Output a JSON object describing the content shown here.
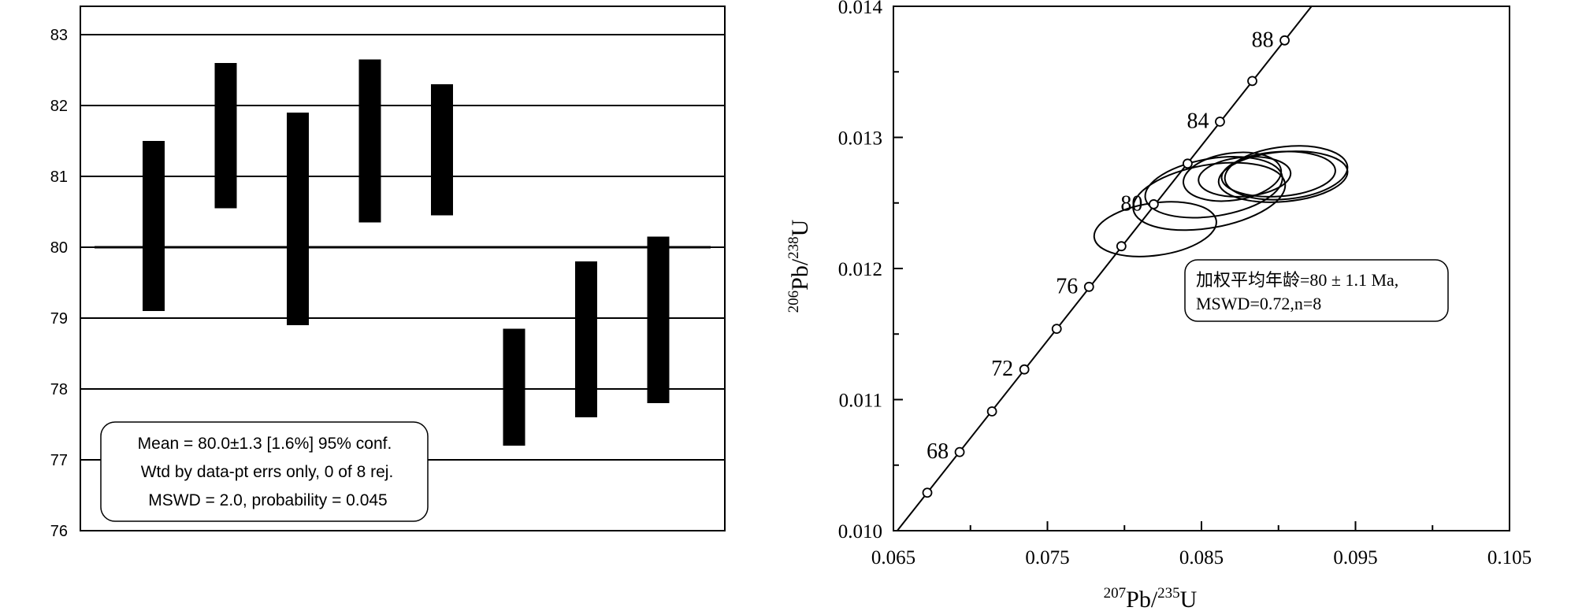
{
  "chart_data": [
    {
      "type": "bar",
      "subtype": "weighted-mean-error-bars",
      "title": "",
      "xlabel": "",
      "ylabel": "",
      "ylim": [
        76,
        83.4
      ],
      "yticks": [
        "76",
        "77",
        "78",
        "79",
        "80",
        "81",
        "82",
        "83"
      ],
      "grid": true,
      "mean_line": 80.0,
      "bars": [
        {
          "low": 79.1,
          "high": 81.5
        },
        {
          "low": 80.55,
          "high": 82.6
        },
        {
          "low": 78.9,
          "high": 81.9
        },
        {
          "low": 80.35,
          "high": 82.65
        },
        {
          "low": 80.45,
          "high": 82.3
        },
        {
          "low": 77.2,
          "high": 78.85
        },
        {
          "low": 77.6,
          "high": 79.8
        },
        {
          "low": 77.8,
          "high": 80.15
        }
      ],
      "annotation": [
        "Mean = 80.0±1.3  [1.6%]  95% conf.",
        "Wtd by data-pt errs only, 0 of 8 rej.",
        "MSWD = 2.0, probability = 0.045"
      ]
    },
    {
      "type": "scatter",
      "subtype": "concordia",
      "title": "",
      "xlabel_num": "207",
      "xlabel_main": "Pb/",
      "xlabel_den": "235",
      "xlabel_unit": "U",
      "ylabel_num": "206",
      "ylabel_main": "Pb/",
      "ylabel_den": "238",
      "ylabel_unit": "U",
      "xlim": [
        0.065,
        0.105
      ],
      "ylim": [
        0.01,
        0.014
      ],
      "xticks": [
        "0.065",
        "0.075",
        "0.085",
        "0.095",
        "0.105"
      ],
      "yticks": [
        "0.010",
        "0.011",
        "0.012",
        "0.013",
        "0.014"
      ],
      "concordia_points": [
        {
          "x": 0.0672,
          "y": 0.01029
        },
        {
          "x": 0.0693,
          "y": 0.0106
        },
        {
          "x": 0.0714,
          "y": 0.01091
        },
        {
          "x": 0.0735,
          "y": 0.01123
        },
        {
          "x": 0.0756,
          "y": 0.01154
        },
        {
          "x": 0.0777,
          "y": 0.01186
        },
        {
          "x": 0.0798,
          "y": 0.01217
        },
        {
          "x": 0.0819,
          "y": 0.01249
        },
        {
          "x": 0.0841,
          "y": 0.0128
        },
        {
          "x": 0.0862,
          "y": 0.01312
        },
        {
          "x": 0.0883,
          "y": 0.01343
        },
        {
          "x": 0.0904,
          "y": 0.01374
        }
      ],
      "age_labels": [
        {
          "label": "68",
          "x": 0.0693,
          "y": 0.0106
        },
        {
          "label": "72",
          "x": 0.0735,
          "y": 0.01123
        },
        {
          "label": "76",
          "x": 0.0777,
          "y": 0.01186
        },
        {
          "label": "80",
          "x": 0.0819,
          "y": 0.01249
        },
        {
          "label": "84",
          "x": 0.0862,
          "y": 0.01312
        },
        {
          "label": "88",
          "x": 0.0904,
          "y": 0.01374
        }
      ],
      "ellipses": [
        {
          "cx": 0.082,
          "cy": 0.0123,
          "rx": 0.004,
          "ry": 0.0002,
          "rot": -8
        },
        {
          "cx": 0.0855,
          "cy": 0.01255,
          "rx": 0.005,
          "ry": 0.00024,
          "rot": -10
        },
        {
          "cx": 0.0858,
          "cy": 0.01262,
          "rx": 0.0045,
          "ry": 0.00022,
          "rot": -9
        },
        {
          "cx": 0.0878,
          "cy": 0.0127,
          "rx": 0.003,
          "ry": 0.00015,
          "rot": -5
        },
        {
          "cx": 0.087,
          "cy": 0.0127,
          "rx": 0.0032,
          "ry": 0.00018,
          "rot": -8
        },
        {
          "cx": 0.0905,
          "cy": 0.01273,
          "rx": 0.004,
          "ry": 0.0002,
          "rot": -6
        },
        {
          "cx": 0.09,
          "cy": 0.01272,
          "rx": 0.0037,
          "ry": 0.00017,
          "rot": -4
        },
        {
          "cx": 0.0903,
          "cy": 0.0127,
          "rx": 0.0042,
          "ry": 0.00019,
          "rot": -5
        }
      ],
      "annotation": [
        "加权平均年龄=80 ± 1.1 Ma,",
        "MSWD=0.72,n=8"
      ]
    }
  ]
}
